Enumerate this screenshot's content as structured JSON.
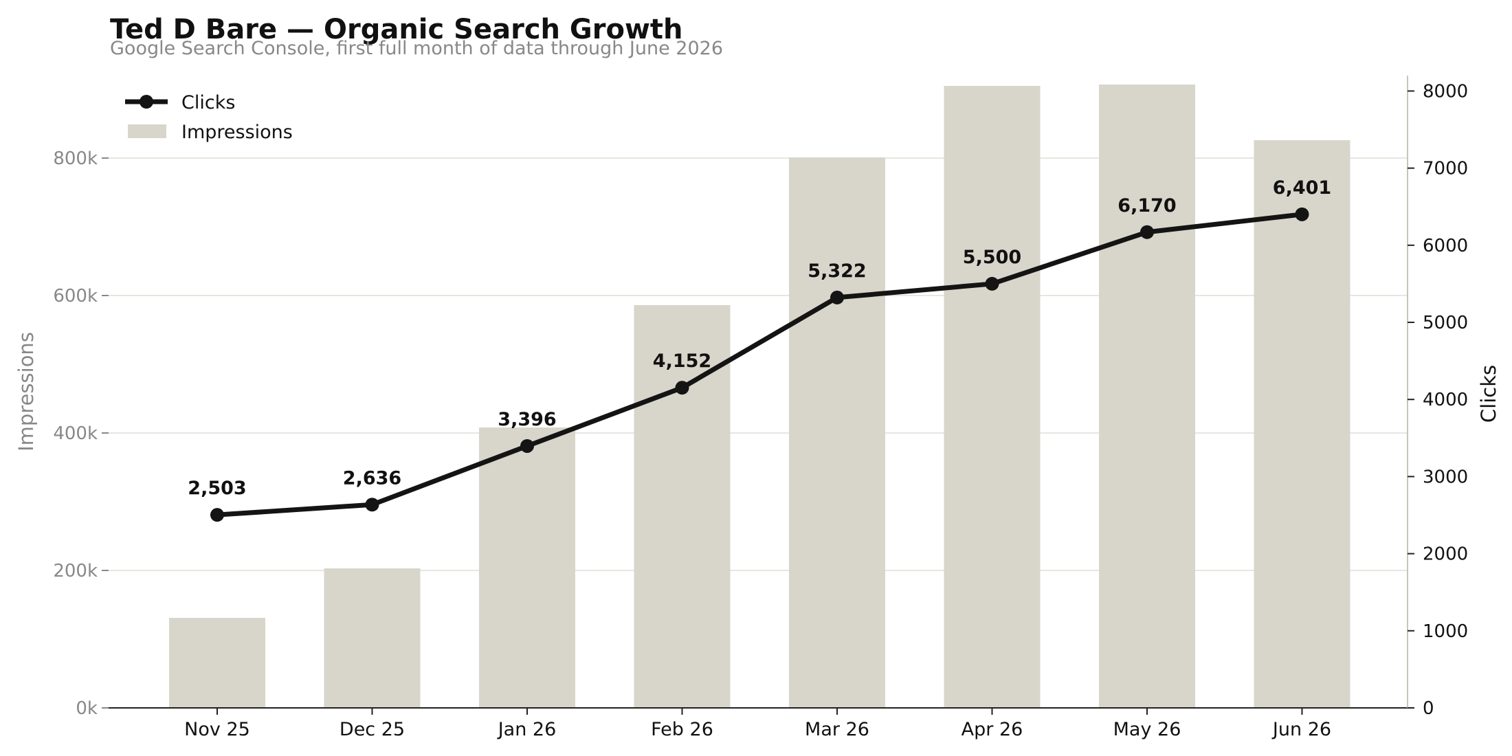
{
  "chart_data": {
    "type": "bar",
    "title": "Ted D Bare — Organic Search Growth",
    "subtitle": "Google Search Console, first full month of data through June 2026",
    "categories": [
      "Nov 25",
      "Dec 25",
      "Jan 26",
      "Feb 26",
      "Mar 26",
      "Apr 26",
      "May 26",
      "Jun 26"
    ],
    "series": [
      {
        "name": "Impressions",
        "type": "bar",
        "axis": "left",
        "values": [
          131000,
          203000,
          408000,
          586000,
          801000,
          905000,
          907000,
          826000
        ]
      },
      {
        "name": "Clicks",
        "type": "line",
        "axis": "right",
        "values": [
          2503,
          2636,
          3396,
          4152,
          5322,
          5500,
          6170,
          6401
        ],
        "labels": [
          "2,503",
          "2,636",
          "3,396",
          "4,152",
          "5,322",
          "5,500",
          "6,170",
          "6,401"
        ]
      }
    ],
    "y_left": {
      "label": "Impressions",
      "range": [
        0,
        920000
      ],
      "ticks": [
        0,
        200000,
        400000,
        600000,
        800000
      ],
      "tick_labels": [
        "0k",
        "200k",
        "400k",
        "600k",
        "800k"
      ]
    },
    "y_right": {
      "label": "Clicks",
      "range": [
        0,
        8200
      ],
      "ticks": [
        0,
        1000,
        2000,
        3000,
        4000,
        5000,
        6000,
        7000,
        8000
      ],
      "tick_labels": [
        "0",
        "1000",
        "2000",
        "3000",
        "4000",
        "5000",
        "6000",
        "7000",
        "8000"
      ]
    },
    "grid": "horizontal",
    "legend": {
      "placement": "top-left",
      "entries": [
        "Clicks",
        "Impressions"
      ]
    },
    "colors": {
      "bar": "#d8d5cb",
      "line": "#141414",
      "grid": "#e6e6e0",
      "muted": "#888888",
      "text": "#111111"
    }
  }
}
